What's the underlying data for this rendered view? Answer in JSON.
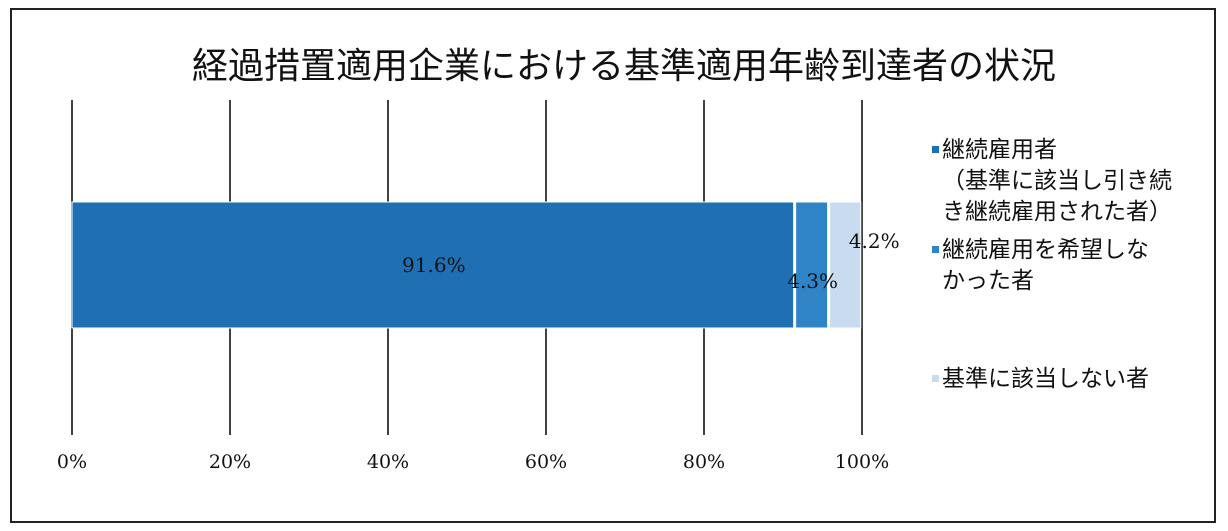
{
  "chart_data": {
    "type": "bar",
    "orientation": "horizontal",
    "stacked": true,
    "percent": true,
    "title": "経過措置適用企業における基準適用年齢到達者の状況",
    "xlabel": "",
    "ylabel": "",
    "xlim": [
      0,
      100
    ],
    "x_ticks": [
      "0%",
      "20%",
      "40%",
      "60%",
      "80%",
      "100%"
    ],
    "grid": "vertical",
    "legend_position": "right",
    "series": [
      {
        "name_lines": [
          "継続雇用者",
          "（基準に該当し引き続",
          "き継続雇用された者）"
        ],
        "value": 91.6,
        "label": "91.6%",
        "color": "#1f6fb5"
      },
      {
        "name_lines": [
          "継続雇用を希望しな",
          "かった者"
        ],
        "value": 4.3,
        "label": "4.3%",
        "color": "#2f84c8"
      },
      {
        "name_lines": [
          "基準に該当しない者"
        ],
        "value": 4.2,
        "label": "4.2%",
        "color": "#c9dcef"
      }
    ]
  }
}
